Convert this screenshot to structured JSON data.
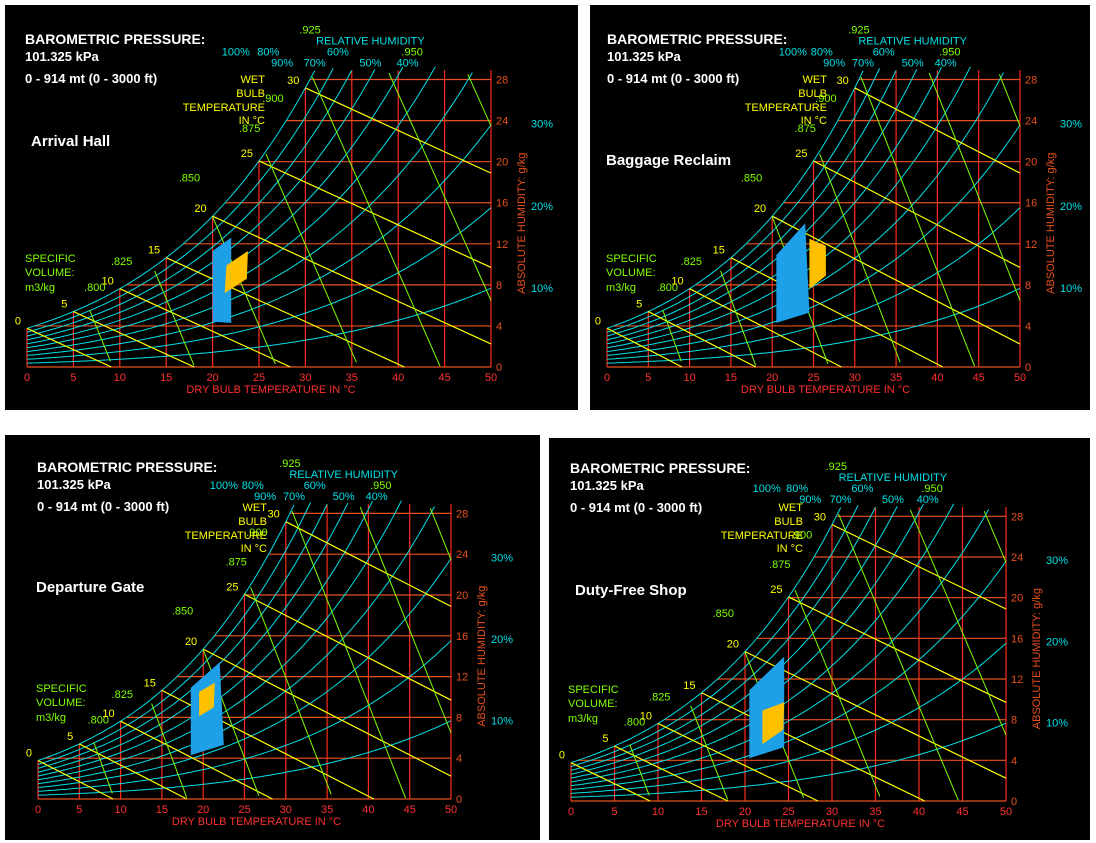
{
  "colors": {
    "background": "#000000",
    "dry_bulb_grid": "#ff2a1a",
    "humidity_grid": "#e8501c",
    "relative_humidity": "#00e0e8",
    "wet_bulb": "#ffff00",
    "specific_volume": "#7fff00",
    "axis_text": "#ff3030",
    "comfort_zone_winter": "#1ea0e8",
    "comfort_zone_summer": "#ffc000"
  },
  "chart_common": {
    "barometric_title": "BAROMETRIC PRESSURE:",
    "pressure_value": "101.325 kPa",
    "altitude_range": "0 - 914 mt (0 - 3000 ft)",
    "rh_title": "RELATIVE HUMIDITY",
    "rh_labels": [
      "100%",
      "80%",
      "60%",
      "90%",
      "70%",
      "50%",
      "40%"
    ],
    "rh_side_labels": [
      "30%",
      "20%",
      "10%"
    ],
    "wb_label_lines": [
      "WET",
      "BULB",
      "TEMPERATURE",
      "IN °C"
    ],
    "sv_label_lines": [
      "SPECIFIC",
      "VOLUME:",
      "m3/kg"
    ],
    "sv_tick_labels": [
      ".800",
      ".825",
      ".850",
      ".875",
      ".900",
      ".925",
      ".950"
    ],
    "wb_tick_labels": [
      "0",
      "5",
      "10",
      "15",
      "20",
      "25",
      "30"
    ],
    "xlabel": "DRY BULB TEMPERATURE IN °C",
    "ylabel": "ABSOLUTE HUMIDITY: g/kg",
    "x_ticks": [
      "0",
      "5",
      "10",
      "15",
      "20",
      "25",
      "30",
      "35",
      "40",
      "45",
      "50"
    ],
    "y_ticks": [
      "0",
      "4",
      "8",
      "12",
      "16",
      "20",
      "24",
      "28"
    ]
  },
  "chart_data": [
    {
      "type": "scatter",
      "title": "Arrival Hall",
      "xlabel": "DRY BULB TEMPERATURE IN °C",
      "ylabel": "ABSOLUTE HUMIDITY: g/kg",
      "xlim": [
        0,
        50
      ],
      "ylim": [
        0,
        30
      ],
      "grid": true,
      "zones": [
        {
          "color": "#1ea0e8",
          "points": [
            [
              20,
              4.4
            ],
            [
              22,
              4.3
            ],
            [
              22,
              12.6
            ],
            [
              20,
              11.3
            ]
          ]
        },
        {
          "color": "#ffc000",
          "points": [
            [
              21.3,
              7.2
            ],
            [
              23.7,
              8.6
            ],
            [
              23.8,
              11.3
            ],
            [
              21.5,
              9.9
            ]
          ]
        }
      ]
    },
    {
      "type": "scatter",
      "title": "Baggage Reclaim",
      "xlabel": "DRY BULB TEMPERATURE IN °C",
      "ylabel": "ABSOLUTE HUMIDITY: g/kg",
      "xlim": [
        0,
        50
      ],
      "ylim": [
        0,
        30
      ],
      "grid": true,
      "zones": [
        {
          "color": "#1ea0e8",
          "points": [
            [
              20.5,
              4.3
            ],
            [
              24.5,
              5.3
            ],
            [
              24.0,
              14.0
            ],
            [
              20.5,
              10.9
            ]
          ]
        },
        {
          "color": "#ffc000",
          "points": [
            [
              24.5,
              7.6
            ],
            [
              26.5,
              8.9
            ],
            [
              26.5,
              11.8
            ],
            [
              24.5,
              12.5
            ]
          ]
        }
      ]
    },
    {
      "type": "scatter",
      "title": "Departure Gate",
      "xlabel": "DRY BULB TEMPERATURE IN °C",
      "ylabel": "ABSOLUTE HUMIDITY: g/kg",
      "xlim": [
        0,
        50
      ],
      "ylim": [
        0,
        30
      ],
      "grid": true,
      "zones": [
        {
          "color": "#1ea0e8",
          "points": [
            [
              18.5,
              4.3
            ],
            [
              22.5,
              5.3
            ],
            [
              22.0,
              13.4
            ],
            [
              18.5,
              10.9
            ]
          ]
        },
        {
          "color": "#ffc000",
          "points": [
            [
              19.5,
              8.1
            ],
            [
              21.3,
              9.0
            ],
            [
              21.4,
              11.4
            ],
            [
              19.5,
              10.5
            ]
          ]
        }
      ]
    },
    {
      "type": "scatter",
      "title": "Duty-Free Shop",
      "xlabel": "DRY BULB TEMPERATURE IN °C",
      "ylabel": "ABSOLUTE HUMIDITY: g/kg",
      "xlim": [
        0,
        50
      ],
      "ylim": [
        0,
        30
      ],
      "grid": true,
      "zones": [
        {
          "color": "#1ea0e8",
          "points": [
            [
              20.5,
              4.2
            ],
            [
              24.5,
              5.3
            ],
            [
              24.5,
              14.2
            ],
            [
              20.5,
              10.9
            ]
          ]
        },
        {
          "color": "#ffc000",
          "points": [
            [
              22.0,
              5.6
            ],
            [
              24.4,
              7.0
            ],
            [
              24.5,
              9.7
            ],
            [
              22.0,
              8.9
            ]
          ]
        }
      ]
    }
  ]
}
